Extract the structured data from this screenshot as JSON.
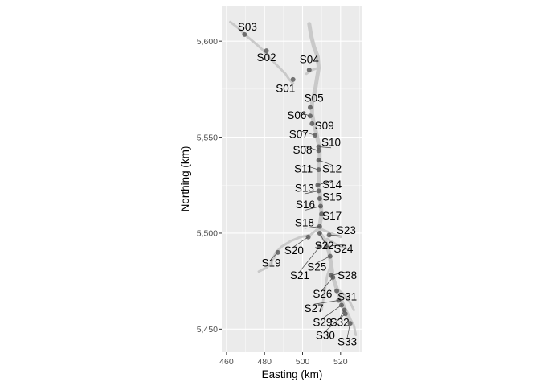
{
  "chart_data": {
    "type": "scatter",
    "title": "",
    "xlabel": "Easting (km)",
    "ylabel": "Northing (km)",
    "xlim": [
      457.5,
      531.5
    ],
    "ylim": [
      5438.0,
      5618.5
    ],
    "xticks": [
      460,
      480,
      500,
      520
    ],
    "xtick_labels": [
      "460",
      "480",
      "500",
      "520"
    ],
    "yticks": [
      5450,
      5500,
      5550,
      5600
    ],
    "ytick_labels": [
      "5,450",
      "5,500",
      "5,550",
      "5,600"
    ],
    "grid": true,
    "colors": {
      "panel": "#ebebeb",
      "grid": "#ffffff",
      "river": "#c9c9c9",
      "point": "#555555"
    },
    "river_main": [
      [
        503.5,
        5609
      ],
      [
        504.5,
        5603
      ],
      [
        506,
        5597
      ],
      [
        508,
        5592
      ],
      [
        508.5,
        5586
      ],
      [
        507.5,
        5580
      ],
      [
        506.5,
        5574
      ],
      [
        505,
        5568
      ],
      [
        505,
        5562
      ],
      [
        506,
        5557
      ],
      [
        507.5,
        5551
      ],
      [
        509,
        5544
      ],
      [
        509,
        5538
      ],
      [
        508.5,
        5530
      ],
      [
        509,
        5523
      ],
      [
        509.5,
        5516
      ],
      [
        510,
        5510
      ],
      [
        509,
        5504
      ],
      [
        509,
        5500
      ],
      [
        512,
        5496
      ],
      [
        514,
        5490
      ],
      [
        515,
        5484
      ],
      [
        516,
        5477
      ],
      [
        518,
        5471
      ],
      [
        520,
        5466
      ],
      [
        522,
        5461
      ],
      [
        524,
        5457
      ],
      [
        525.5,
        5453
      ]
    ],
    "river_branches": [
      [
        [
          462,
          5610
        ],
        [
          466,
          5607
        ],
        [
          469.5,
          5603.5
        ],
        [
          475,
          5599
        ],
        [
          479,
          5595.5
        ],
        [
          483,
          5591
        ],
        [
          488,
          5586
        ],
        [
          491,
          5583
        ],
        [
          493,
          5580
        ],
        [
          495,
          5578
        ]
      ],
      [
        [
          502,
          5583
        ],
        [
          505,
          5585
        ],
        [
          508,
          5586
        ]
      ],
      [
        [
          509,
          5503
        ],
        [
          504,
          5499
        ],
        [
          499,
          5498
        ],
        [
          494,
          5496
        ],
        [
          489,
          5493
        ],
        [
          486,
          5490
        ],
        [
          485,
          5487
        ]
      ],
      [
        [
          486,
          5490
        ],
        [
          483,
          5484
        ],
        [
          481,
          5482
        ],
        [
          477,
          5480
        ]
      ],
      [
        [
          510,
          5502
        ],
        [
          515,
          5500
        ],
        [
          520,
          5498
        ]
      ],
      [
        [
          513,
          5497
        ],
        [
          518,
          5494
        ],
        [
          523,
          5492
        ]
      ],
      [
        [
          515,
          5484
        ],
        [
          513,
          5478
        ],
        [
          512,
          5472
        ],
        [
          511,
          5466
        ],
        [
          510,
          5460
        ]
      ],
      [
        [
          518,
          5471
        ],
        [
          522,
          5468
        ],
        [
          525,
          5464
        ],
        [
          527,
          5460
        ]
      ],
      [
        [
          524,
          5457
        ],
        [
          527,
          5452
        ],
        [
          528,
          5447
        ]
      ]
    ],
    "points": [
      {
        "id": "S03",
        "x": 469.5,
        "y": 5603.5,
        "lx": 471,
        "ly": 5607
      },
      {
        "id": "S02",
        "x": 481.0,
        "y": 5595.0,
        "lx": 481,
        "ly": 5591
      },
      {
        "id": "S04",
        "x": 503.5,
        "y": 5585.0,
        "lx": 503.5,
        "ly": 5590
      },
      {
        "id": "S01",
        "x": 495.0,
        "y": 5580.0,
        "lx": 491,
        "ly": 5575
      },
      {
        "id": "S05",
        "x": 504.0,
        "y": 5565.5,
        "lx": 506,
        "ly": 5570
      },
      {
        "id": "S06",
        "x": 504.0,
        "y": 5561.0,
        "lx": 497,
        "ly": 5561
      },
      {
        "id": "S09",
        "x": 505.0,
        "y": 5557.0,
        "lx": 511.5,
        "ly": 5555.5
      },
      {
        "id": "S07",
        "x": 506.5,
        "y": 5551.0,
        "lx": 498,
        "ly": 5551
      },
      {
        "id": "S10",
        "x": 508.5,
        "y": 5545.0,
        "lx": 515,
        "ly": 5547
      },
      {
        "id": "S08",
        "x": 508.5,
        "y": 5543.0,
        "lx": 500,
        "ly": 5543
      },
      {
        "id": "S12",
        "x": 508.5,
        "y": 5538.0,
        "lx": 515.5,
        "ly": 5533
      },
      {
        "id": "S11",
        "x": 508.5,
        "y": 5533.0,
        "lx": 500.5,
        "ly": 5533
      },
      {
        "id": "S14",
        "x": 508.0,
        "y": 5525.0,
        "lx": 515.5,
        "ly": 5525
      },
      {
        "id": "S13",
        "x": 508.5,
        "y": 5522.0,
        "lx": 501,
        "ly": 5523
      },
      {
        "id": "S15",
        "x": 509.0,
        "y": 5518.0,
        "lx": 515.5,
        "ly": 5518.5
      },
      {
        "id": "S16",
        "x": 509.5,
        "y": 5514.0,
        "lx": 501.5,
        "ly": 5514.5
      },
      {
        "id": "S17",
        "x": 510.0,
        "y": 5510.0,
        "lx": 515.5,
        "ly": 5508.5
      },
      {
        "id": "S18",
        "x": 509.0,
        "y": 5503.5,
        "lx": 501,
        "ly": 5505
      },
      {
        "id": "S23",
        "x": 514.0,
        "y": 5499.0,
        "lx": 523,
        "ly": 5501
      },
      {
        "id": "S22",
        "x": 509.0,
        "y": 5500.0,
        "lx": 511.5,
        "ly": 5493
      },
      {
        "id": "S20",
        "x": 503.0,
        "y": 5498.0,
        "lx": 495.5,
        "ly": 5490.5
      },
      {
        "id": "S24",
        "x": 512.5,
        "y": 5493.0,
        "lx": 521.5,
        "ly": 5491.5
      },
      {
        "id": "S19",
        "x": 487.0,
        "y": 5490.0,
        "lx": 483.5,
        "ly": 5484
      },
      {
        "id": "S25",
        "x": 514.5,
        "y": 5488.0,
        "lx": 507.5,
        "ly": 5482
      },
      {
        "id": "S21",
        "x": 509.0,
        "y": 5493.0,
        "lx": 498.5,
        "ly": 5477.5
      },
      {
        "id": "S28",
        "x": 515.0,
        "y": 5478.0,
        "lx": 523.5,
        "ly": 5477.5
      },
      {
        "id": "S26",
        "x": 516.0,
        "y": 5477.0,
        "lx": 510.5,
        "ly": 5468
      },
      {
        "id": "S31",
        "x": 518.0,
        "y": 5470.0,
        "lx": 523.5,
        "ly": 5466.5
      },
      {
        "id": "S27",
        "x": 519.0,
        "y": 5465.0,
        "lx": 506,
        "ly": 5460.5
      },
      {
        "id": "S29",
        "x": 520.5,
        "y": 5462.5,
        "lx": 510.5,
        "ly": 5453
      },
      {
        "id": "S32",
        "x": 522.0,
        "y": 5460.0,
        "lx": 519.5,
        "ly": 5453
      },
      {
        "id": "S30",
        "x": 522.5,
        "y": 5458.0,
        "lx": 512,
        "ly": 5446.5
      },
      {
        "id": "S33",
        "x": 525.0,
        "y": 5453.0,
        "lx": 523.5,
        "ly": 5443
      }
    ]
  }
}
